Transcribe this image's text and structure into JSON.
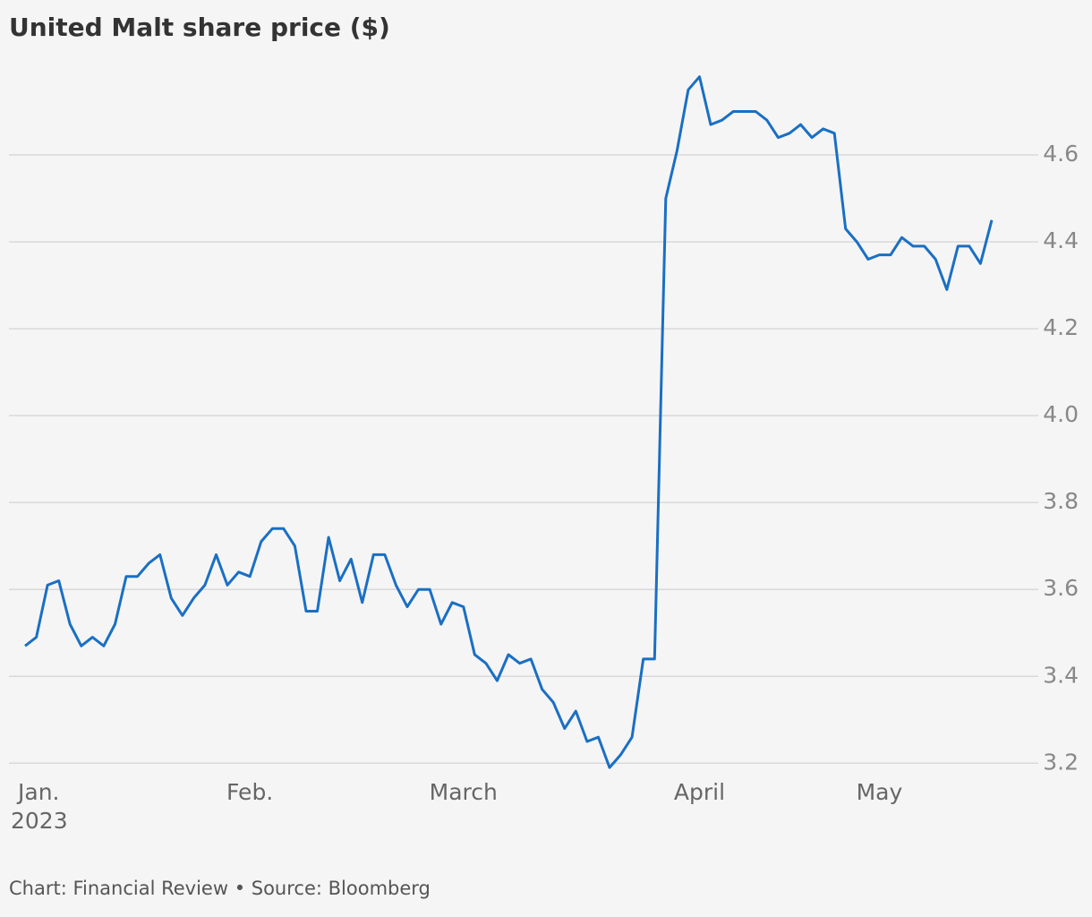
{
  "chart_data": {
    "type": "line",
    "title": "United Malt share price ($)",
    "source": "Chart: Financial Review • Source: Bloomberg",
    "x_year": "2023",
    "categories": [
      "Jan.",
      null,
      null,
      null,
      null,
      null,
      null,
      null,
      null,
      null,
      null,
      null,
      null,
      null,
      null,
      null,
      null,
      null,
      null,
      null,
      "Feb.",
      null,
      null,
      null,
      null,
      null,
      null,
      null,
      null,
      null,
      null,
      null,
      null,
      null,
      null,
      null,
      null,
      null,
      null,
      "March",
      null,
      null,
      null,
      null,
      null,
      null,
      null,
      null,
      null,
      null,
      null,
      null,
      null,
      null,
      null,
      null,
      null,
      null,
      null,
      null,
      "April",
      null,
      null,
      null,
      null,
      null,
      null,
      null,
      null,
      null,
      null,
      null,
      null,
      null,
      null,
      null,
      "May",
      null,
      null,
      null,
      null,
      null,
      null,
      null,
      null,
      null,
      null
    ],
    "series": [
      {
        "name": "United Malt",
        "color": "#1a6fc4",
        "values": [
          3.47,
          3.49,
          3.61,
          3.62,
          3.52,
          3.47,
          3.49,
          3.47,
          3.52,
          3.63,
          3.63,
          3.66,
          3.68,
          3.58,
          3.54,
          3.58,
          3.61,
          3.68,
          3.61,
          3.64,
          3.63,
          3.71,
          3.74,
          3.74,
          3.7,
          3.55,
          3.55,
          3.72,
          3.62,
          3.67,
          3.57,
          3.68,
          3.68,
          3.61,
          3.56,
          3.6,
          3.6,
          3.52,
          3.57,
          3.56,
          3.45,
          3.43,
          3.39,
          3.45,
          3.43,
          3.44,
          3.37,
          3.34,
          3.28,
          3.32,
          3.25,
          3.26,
          3.19,
          3.22,
          3.26,
          3.44,
          3.44,
          4.5,
          4.61,
          4.75,
          4.78,
          4.67,
          4.68,
          4.7,
          4.7,
          4.7,
          4.68,
          4.64,
          4.65,
          4.67,
          4.64,
          4.66,
          4.65,
          4.43,
          4.4,
          4.36,
          4.37,
          4.37,
          4.41,
          4.39,
          4.39,
          4.36,
          4.29,
          4.39,
          4.39,
          4.35,
          4.45
        ]
      }
    ],
    "ylim": [
      3.18,
      4.8
    ],
    "yticks": [
      {
        "value": 3.2,
        "label": "3.2"
      },
      3.4,
      3.6,
      3.8,
      {
        "value": 4.0,
        "label": "4.0"
      },
      4.2,
      4.4,
      4.6
    ],
    "grid": true
  }
}
